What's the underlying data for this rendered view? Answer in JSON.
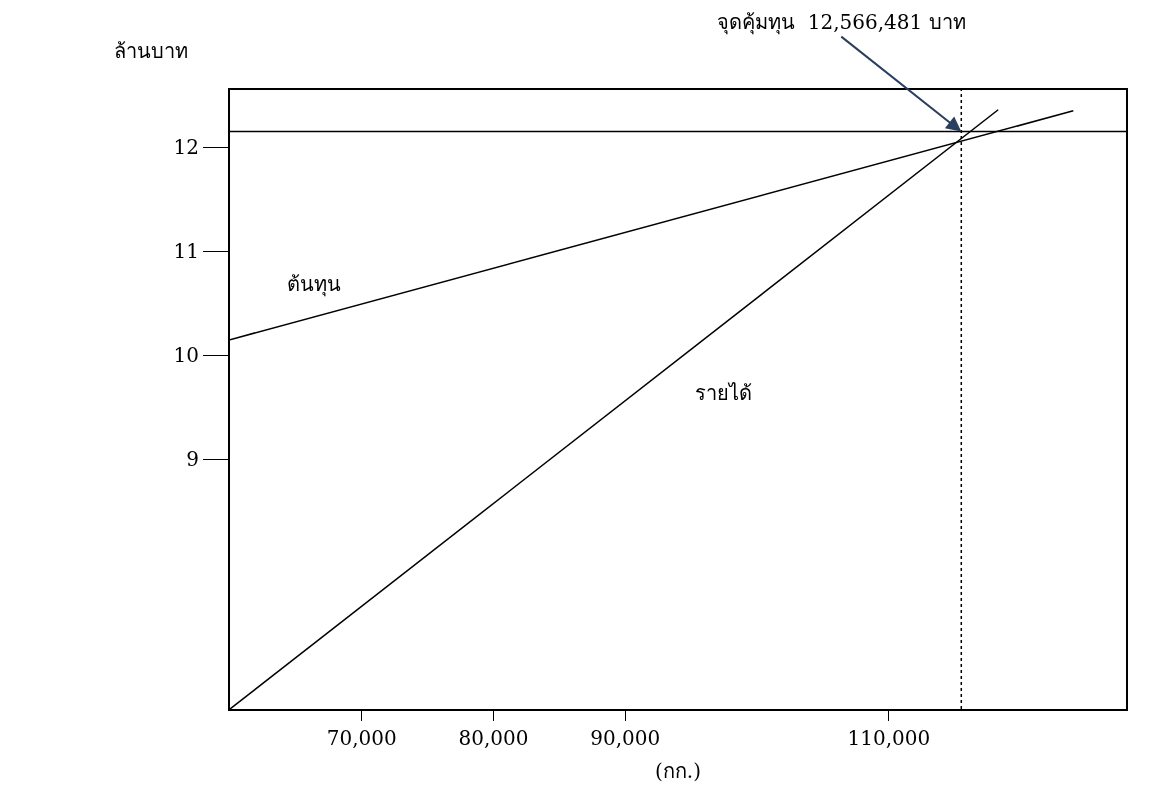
{
  "chart_data": {
    "type": "line",
    "ylabel": "ล้านบาท",
    "xlabel": "(กก.)",
    "annotations": [
      {
        "text": "จุดคุ้มทุน  12,566,481 บาท",
        "x": 115500,
        "y": 12.15
      }
    ],
    "series": [
      {
        "name": "ต้นทุน",
        "color": "#000000",
        "x": [
          60000,
          124000
        ],
        "values": [
          10.15,
          12.35
        ]
      },
      {
        "name": "รายได้",
        "color": "#000000",
        "x": [
          60000,
          118300
        ],
        "values": [
          6.6,
          12.36
        ]
      }
    ],
    "ref_lines": [
      {
        "axis": "y",
        "value": 12.15,
        "label": null,
        "color": "#000000",
        "line_style": "solid"
      },
      {
        "axis": "x",
        "value": 115500,
        "label": null,
        "color": "#000000",
        "line_style": "dotted"
      }
    ],
    "xlim": [
      60000,
      128000
    ],
    "xticks": [
      {
        "value": 70000,
        "label": "70,000"
      },
      {
        "value": 80000,
        "label": "80,000"
      },
      {
        "value": 90000,
        "label": "90,000"
      },
      {
        "value": 110000,
        "label": "110,000"
      }
    ],
    "ylim": [
      6.6,
      12.55
    ],
    "yticks": [
      9,
      10,
      11,
      12
    ],
    "legend": false,
    "marker": "none",
    "line_style": "solid"
  }
}
